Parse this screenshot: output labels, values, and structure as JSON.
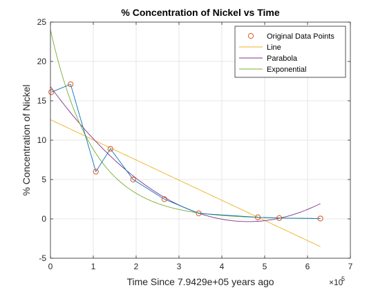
{
  "chart_data": {
    "type": "line",
    "title": "% Concentration of Nickel vs Time",
    "xlabel": "Time Since 7.9429e+05 years ago",
    "ylabel": "% Concentration of Nickel",
    "x_exponent_label": "×10",
    "x_exponent_power": "5",
    "xlim": [
      0,
      700000
    ],
    "ylim": [
      -5,
      25
    ],
    "x_ticks": [
      0,
      100000,
      200000,
      300000,
      400000,
      500000,
      600000,
      700000
    ],
    "x_tick_labels": [
      "0",
      "1",
      "2",
      "3",
      "4",
      "5",
      "6",
      "7"
    ],
    "y_ticks": [
      -5,
      0,
      5,
      10,
      15,
      20,
      25
    ],
    "y_tick_labels": [
      "-5",
      "0",
      "5",
      "10",
      "15",
      "20",
      "25"
    ],
    "grid": true,
    "legend_position": "top-right",
    "data_points": {
      "name": "Original Data Points",
      "color": "#D95319",
      "x": [
        2000,
        47000,
        106000,
        140000,
        193000,
        266000,
        346000,
        484000,
        534000,
        630000
      ],
      "y": [
        16.1,
        17.1,
        6.0,
        8.9,
        5.0,
        2.5,
        0.7,
        0.2,
        0.1,
        0.05
      ]
    },
    "connecting_line_color": "#0072BD",
    "fits": [
      {
        "name": "Line",
        "color": "#EDB120",
        "kind": "linear",
        "coef": [
          12.6,
          -2.56e-05
        ],
        "x_range": [
          0,
          630000
        ]
      },
      {
        "name": "Parabola",
        "color": "#7E2F8E",
        "kind": "quadratic",
        "coef": [
          16.8,
          -7.43e-05,
          8.05e-11
        ],
        "x_range": [
          0,
          630000
        ]
      },
      {
        "name": "Exponential",
        "color": "#77AC30",
        "kind": "exponential",
        "coef": [
          24.0,
          1e-05
        ],
        "x_range": [
          0,
          630000
        ]
      }
    ]
  }
}
